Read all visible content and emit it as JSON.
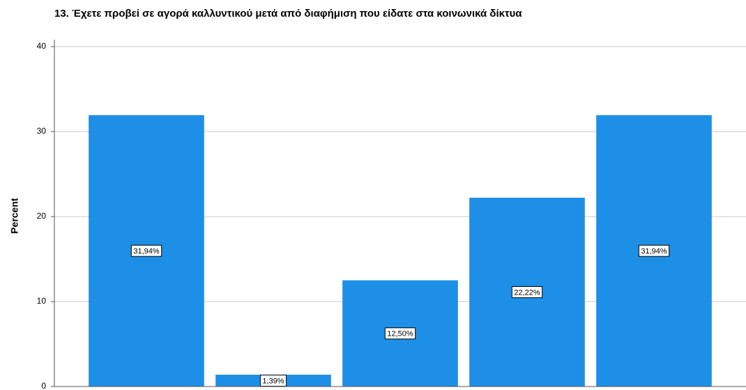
{
  "chart_data": {
    "type": "bar",
    "title": "13. Έχετε προβεί σε αγορά καλλυντικού μετά από διαφήμιση που είδατε στα κοινωνικά δίκτυα",
    "y_label": "Percent",
    "categories": [
      null,
      null,
      null,
      null,
      null
    ],
    "values": [
      31.94,
      1.39,
      12.5,
      22.22,
      31.94
    ],
    "value_labels": [
      "31,94%",
      "1,39%",
      "12,50%",
      "22,22%",
      "31,94%"
    ],
    "color": "#1e8fe6",
    "ylim": [
      0,
      40
    ],
    "yticks": [
      0,
      10,
      20,
      30,
      40
    ],
    "grid": true
  }
}
